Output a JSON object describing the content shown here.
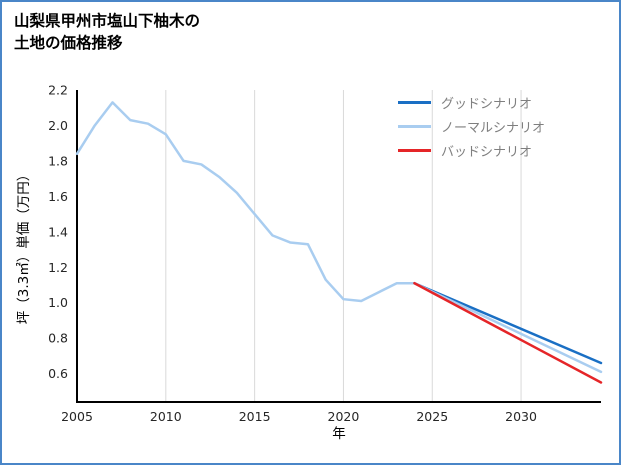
{
  "page": {
    "title_lines": [
      "山梨県甲州市塩山下柚木の",
      "土地の価格推移"
    ],
    "border_color": "#4a86c8",
    "background": "#ffffff"
  },
  "chart_data": {
    "type": "line",
    "title": "山梨県甲州市塩山下柚木の土地の価格推移",
    "xlabel": "年",
    "ylabel": "坪（3.3㎡）単価（万円）",
    "x_ticks": [
      2005,
      2010,
      2015,
      2020,
      2025,
      2030
    ],
    "y_ticks": [
      0.6,
      0.8,
      1.0,
      1.2,
      1.4,
      1.6,
      1.8,
      2.0,
      2.2
    ],
    "x_range": [
      2005,
      2034.5
    ],
    "ylim": [
      0.44,
      2.2
    ],
    "grid": "vertical",
    "grid_color": "#d9d9d9",
    "axis_color": "#000000",
    "legend_position": "top-right",
    "series": [
      {
        "id": "historical",
        "color": "#a9cdf0",
        "x": [
          2005,
          2006,
          2007,
          2008,
          2009,
          2010,
          2011,
          2012,
          2013,
          2014,
          2015,
          2016,
          2017,
          2018,
          2019,
          2020,
          2021,
          2022,
          2023,
          2024
        ],
        "y": [
          1.84,
          2.0,
          2.13,
          2.03,
          2.01,
          1.95,
          1.8,
          1.78,
          1.71,
          1.62,
          1.5,
          1.38,
          1.34,
          1.33,
          1.13,
          1.02,
          1.01,
          1.06,
          1.11,
          1.11
        ]
      },
      {
        "id": "good-scenario",
        "name": "グッドシナリオ",
        "color": "#1a6fc4",
        "x": [
          2024,
          2034.5
        ],
        "y": [
          1.11,
          0.66
        ]
      },
      {
        "id": "normal-scenario",
        "name": "ノーマルシナリオ",
        "color": "#a9cdf0",
        "x": [
          2024,
          2034.5
        ],
        "y": [
          1.11,
          0.61
        ]
      },
      {
        "id": "bad-scenario",
        "name": "バッドシナリオ",
        "color": "#e52528",
        "x": [
          2024,
          2034.5
        ],
        "y": [
          1.11,
          0.55
        ]
      }
    ],
    "legend_items": [
      {
        "label": "グッドシナリオ",
        "color": "#1a6fc4"
      },
      {
        "label": "ノーマルシナリオ",
        "color": "#a9cdf0"
      },
      {
        "label": "バッドシナリオ",
        "color": "#e52528"
      }
    ]
  }
}
